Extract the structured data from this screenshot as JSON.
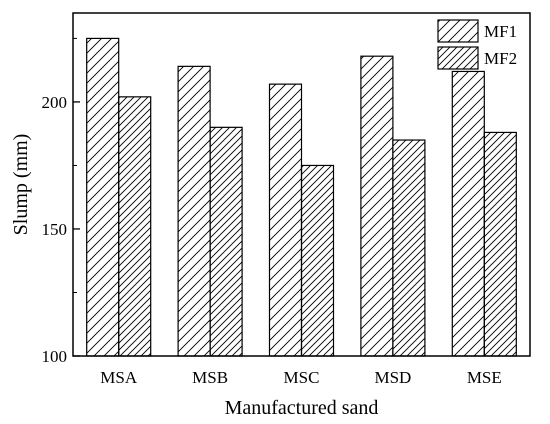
{
  "chart_data": {
    "type": "bar",
    "categories": [
      "MSA",
      "MSB",
      "MSC",
      "MSD",
      "MSE"
    ],
    "series": [
      {
        "name": "MF1",
        "values": [
          225,
          214,
          207,
          218,
          212
        ],
        "pattern": "hatch-forward"
      },
      {
        "name": "MF2",
        "values": [
          202,
          190,
          175,
          185,
          188
        ],
        "pattern": "hatch-dense"
      }
    ],
    "xlabel": "Manufactured sand",
    "ylabel": "Slump (mm)",
    "ylim": [
      100,
      235
    ],
    "yticks": [
      100,
      150,
      200
    ],
    "grid": false,
    "legend_position": "top-right",
    "colors": {
      "bar_fill": "#ffffff",
      "bar_stroke": "#000000",
      "hatch": "#000000"
    }
  }
}
